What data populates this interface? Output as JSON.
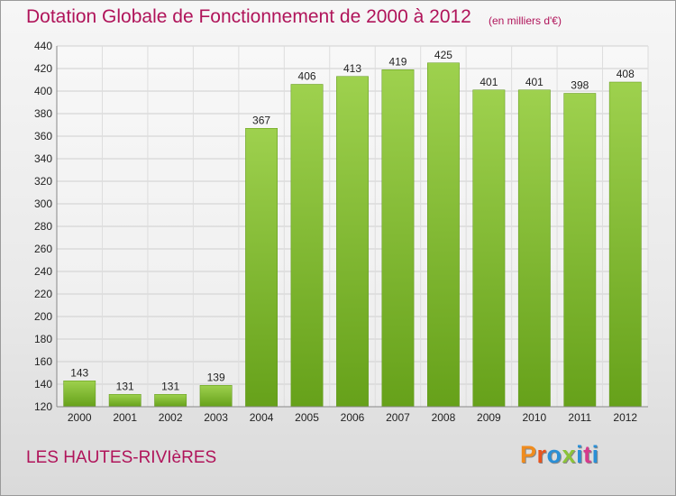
{
  "header": {
    "title": "Dotation Globale de Fonctionnement de 2000 à 2012",
    "subtitle": "(en milliers d'€)"
  },
  "footer": {
    "commune": "LES HAUTES-RIVIèRES",
    "brand": "Proxiti",
    "brand_colors": [
      "#f08c1e",
      "#e8541e",
      "#2a8fd6",
      "#8cc33a",
      "#2a8fd6",
      "#d63a8c",
      "#2a8fd6"
    ]
  },
  "chart_data": {
    "type": "bar",
    "categories": [
      "2000",
      "2001",
      "2002",
      "2003",
      "2004",
      "2005",
      "2006",
      "2007",
      "2008",
      "2009",
      "2010",
      "2011",
      "2012"
    ],
    "values": [
      143,
      131,
      131,
      139,
      367,
      406,
      413,
      419,
      425,
      401,
      401,
      398,
      408
    ],
    "ylim": [
      120,
      440
    ],
    "yticks": [
      120,
      140,
      160,
      180,
      200,
      220,
      240,
      260,
      280,
      300,
      320,
      340,
      360,
      380,
      400,
      420,
      440
    ],
    "grid": true,
    "bar_color": "#8cc63f",
    "bar_color_dark": "#6aa81e"
  }
}
